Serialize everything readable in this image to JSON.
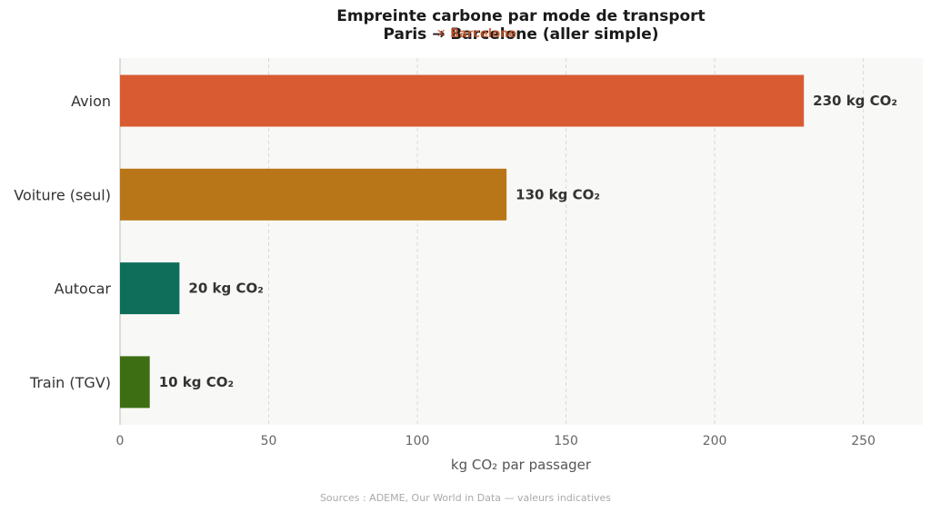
{
  "chart_data": {
    "type": "bar",
    "orientation": "horizontal",
    "title": "Empreinte carbone par mode de transport",
    "subtitle": "Paris → Barcelone (aller simple)",
    "overlay": "✕ Barcelone",
    "categories": [
      "Avion",
      "Voiture (seul)",
      "Autocar",
      "Train (TGV)"
    ],
    "values": [
      230,
      130,
      20,
      10
    ],
    "value_labels": [
      "230 kg CO₂",
      "130 kg CO₂",
      "20 kg CO₂",
      "10 kg CO₂"
    ],
    "colors": [
      "#d95b32",
      "#b87618",
      "#0f6e5a",
      "#3d6e14"
    ],
    "xlabel": "kg CO₂ par passager",
    "ylabel": "",
    "xlim": [
      0,
      270
    ],
    "xticks": [
      0,
      50,
      100,
      150,
      200,
      250
    ],
    "xtick_labels": [
      "0",
      "50",
      "100",
      "150",
      "200",
      "250"
    ],
    "grid": "x dashed",
    "source": "Sources : ADEME, Our World in Data — valeurs indicatives"
  },
  "colors": {
    "plot_background": "#f8f8f6",
    "grid": "#d9d9d9",
    "axis": "#bbbbbb"
  }
}
